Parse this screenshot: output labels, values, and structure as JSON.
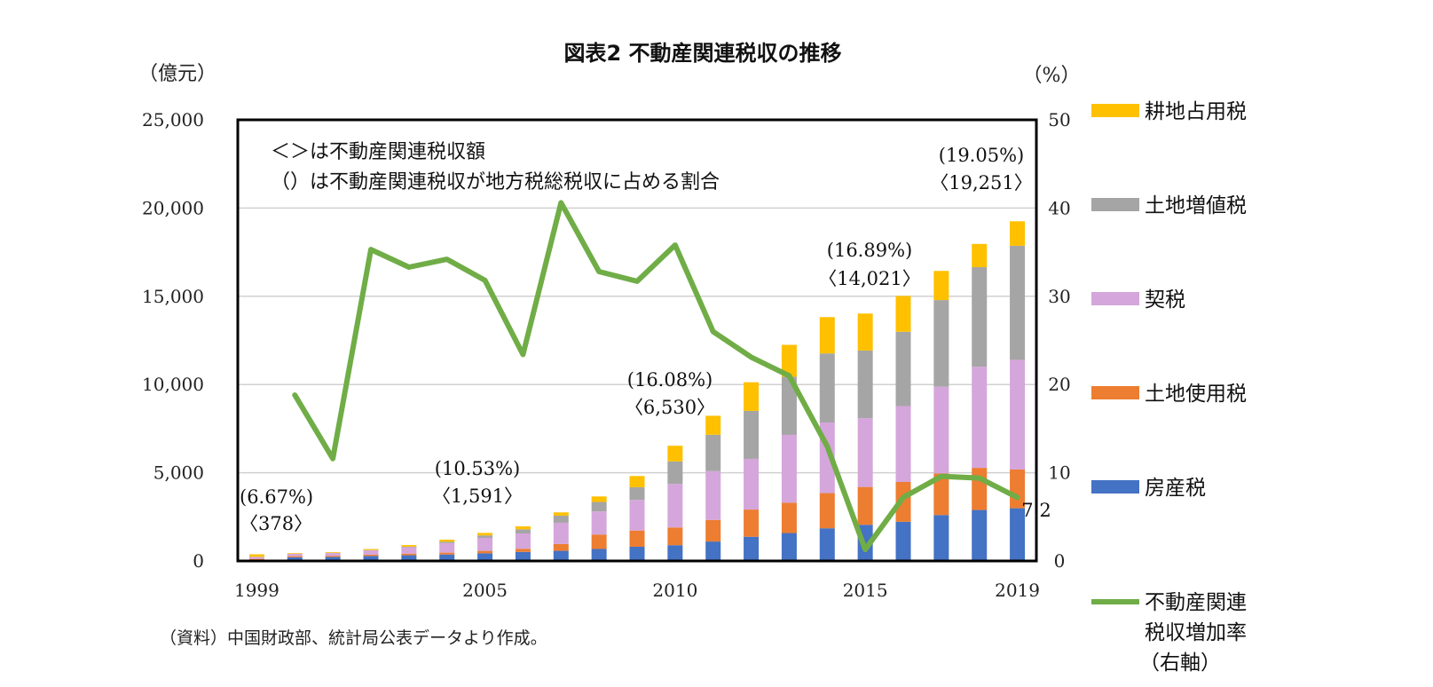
{
  "chart_data": {
    "type": "bar",
    "stacked": true,
    "title": "図表2 不動産関連税収の推移",
    "y_left_label": "（億元）",
    "y_right_label": "（%）",
    "ylim_left": [
      0,
      25000
    ],
    "ylim_right": [
      0,
      50
    ],
    "y_left_ticks": [
      "0",
      "5,000",
      "10,000",
      "15,000",
      "20,000",
      "25,000"
    ],
    "y_right_ticks": [
      "0",
      "10",
      "20",
      "30",
      "40",
      "50"
    ],
    "x_tick_labels": [
      "1999",
      "2005",
      "2010",
      "2015",
      "2019"
    ],
    "categories": [
      "1999",
      "2000",
      "2001",
      "2002",
      "2003",
      "2004",
      "2005",
      "2006",
      "2007",
      "2008",
      "2009",
      "2010",
      "2011",
      "2012",
      "2013",
      "2014",
      "2015",
      "2016",
      "2017",
      "2018",
      "2019"
    ],
    "series": [
      {
        "name": "房産税",
        "color": "#4472C4",
        "values": [
          59,
          209,
          228,
          282,
          324,
          366,
          436,
          515,
          575,
          681,
          804,
          894,
          1102,
          1372,
          1582,
          1852,
          2051,
          2221,
          2604,
          2889,
          2988
        ]
      },
      {
        "name": "土地使用税",
        "color": "#ED7D31",
        "values": [
          59,
          64,
          66,
          77,
          92,
          106,
          137,
          177,
          385,
          817,
          921,
          1004,
          1222,
          1541,
          1719,
          1993,
          2142,
          2256,
          2360,
          2388,
          2195
        ]
      },
      {
        "name": "契税",
        "color": "#D5A6DB",
        "values": [
          96,
          131,
          157,
          239,
          358,
          540,
          735,
          868,
          1206,
          1308,
          1735,
          2465,
          2766,
          2874,
          3844,
          4001,
          3899,
          4300,
          4910,
          5730,
          6213
        ]
      },
      {
        "name": "土地増値税",
        "color": "#A5A5A5",
        "values": [
          24,
          8,
          10,
          20,
          37,
          75,
          140,
          231,
          403,
          537,
          720,
          1278,
          2063,
          2719,
          3294,
          3915,
          3832,
          4212,
          4911,
          5642,
          6465
        ]
      },
      {
        "name": "耕地占用税",
        "color": "#FFC000",
        "values": [
          140,
          35,
          38,
          57,
          90,
          120,
          143,
          171,
          185,
          314,
          633,
          889,
          1075,
          1621,
          1808,
          2059,
          2097,
          2029,
          1652,
          1319,
          1390
        ]
      }
    ],
    "line_series": {
      "name": "不動産関連税収増加率（右軸）",
      "color": "#70AD47",
      "axis": "right",
      "values": [
        null,
        18.8,
        11.6,
        35.3,
        33.3,
        34.2,
        31.8,
        23.4,
        40.6,
        32.8,
        31.7,
        35.8,
        26.0,
        23.1,
        21.0,
        13.0,
        1.3,
        7.2,
        9.6,
        9.4,
        7.2
      ]
    },
    "legend": [
      "耕地占用税",
      "土地増値税",
      "契税",
      "土地使用税",
      "房産税",
      "不動産関連税収増加率（右軸）"
    ],
    "legend_position": "right",
    "annotations": {
      "note_line1": "＜＞は不動産関連税収額",
      "note_line2": "（）は不動産関連税収が地方税総税収に占める割合",
      "a1999_share": "(6.67%)",
      "a1999_amount": "〈378〉",
      "a2005_share": "(10.53%)",
      "a2005_amount": "〈1,591〉",
      "a2010_share": "(16.08%)",
      "a2010_amount": "〈6,530〉",
      "a2015_share": "(16.89%)",
      "a2015_amount": "〈14,021〉",
      "a2019_share": "(19.05%)",
      "a2019_amount": "〈19,251〉",
      "last_rate_label": "7.2"
    },
    "source": "（資料）中国財政部、統計局公表データより作成。"
  }
}
